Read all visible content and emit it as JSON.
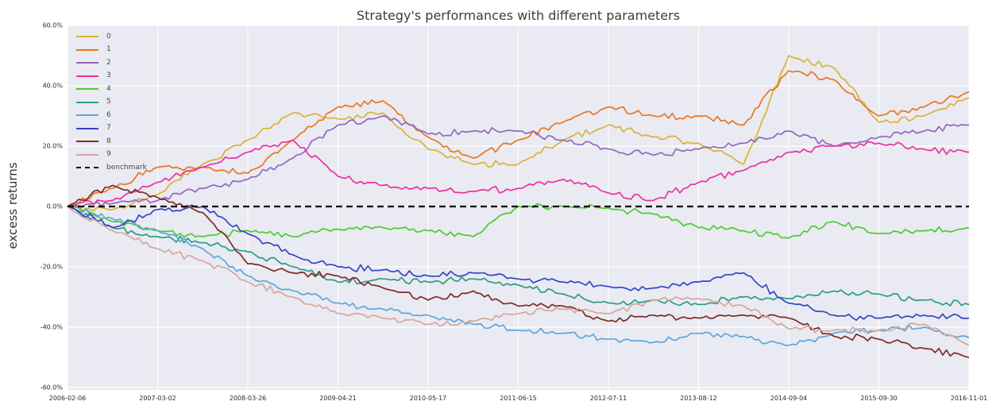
{
  "chart_data": {
    "type": "line",
    "title": "Strategy's performances with different parameters",
    "ylabel": "excess returns",
    "xlabel": "",
    "ylim": [
      -60,
      60
    ],
    "grid": true,
    "legend_position": "upper left",
    "plot_background": "#eaeaf2",
    "gridline_color": "#ffffff",
    "ytick_labels": [
      "60.0%",
      "40.0%",
      "20.0%",
      "0.0%",
      "-20.0%",
      "-40.0%",
      "-60.0%"
    ],
    "ytick_values": [
      60,
      40,
      20,
      0,
      -20,
      -40,
      -60
    ],
    "xtick_labels": [
      "2006-02-06",
      "2007-03-02",
      "2008-03-26",
      "2009-04-21",
      "2010-05-17",
      "2011-06-15",
      "2012-07-11",
      "2013-08-12",
      "2014-09-04",
      "2015-09-30",
      "2016-11-01"
    ],
    "sampling_note": "values are excess returns in percent, sampled at every half interval between the 11 x-axis tick dates (21 points per series)",
    "benchmark": {
      "label": "benchmark",
      "value": 0,
      "color": "#000000",
      "dashed": true
    },
    "series": [
      {
        "name": "0",
        "color": "#d9b333",
        "values": [
          0,
          -1,
          4,
          14,
          22,
          31,
          29,
          31,
          19,
          14,
          14,
          22,
          27,
          23,
          21,
          14,
          50,
          46,
          28,
          30,
          36
        ]
      },
      {
        "name": "1",
        "color": "#e8771f",
        "values": [
          0,
          6,
          13,
          13,
          11,
          22,
          33,
          35,
          23,
          16,
          22,
          28,
          33,
          30,
          30,
          27,
          45,
          42,
          30,
          33,
          38
        ]
      },
      {
        "name": "2",
        "color": "#9467bd",
        "values": [
          0,
          1,
          2,
          6,
          9,
          16,
          27,
          30,
          24,
          25,
          25,
          22,
          19,
          17,
          19,
          21,
          25,
          20,
          23,
          25,
          27
        ]
      },
      {
        "name": "3",
        "color": "#ea31a3",
        "values": [
          0,
          2,
          8,
          13,
          18,
          22,
          10,
          7,
          6,
          5,
          6,
          9,
          4.5,
          2,
          8,
          12,
          18,
          20,
          21,
          19,
          18
        ]
      },
      {
        "name": "4",
        "color": "#4ccb2f",
        "values": [
          0,
          -5,
          -8,
          -10,
          -8,
          -10,
          -7.5,
          -7,
          -8,
          -10,
          0,
          0,
          -0.5,
          -2.5,
          -7,
          -8,
          -10.5,
          -5,
          -9,
          -8,
          -7
        ]
      },
      {
        "name": "5",
        "color": "#2a9d83",
        "values": [
          0,
          -7,
          -10,
          -12,
          -15,
          -20,
          -25,
          -24,
          -25,
          -24,
          -26,
          -29,
          -32,
          -31,
          -32.5,
          -30,
          -30.5,
          -28,
          -29,
          -31,
          -32.5
        ]
      },
      {
        "name": "6",
        "color": "#5ca7dc",
        "values": [
          0,
          -4,
          -8,
          -14,
          -23,
          -28,
          -32,
          -34,
          -36,
          -39,
          -41,
          -42,
          -44,
          -45,
          -42,
          -43,
          -46,
          -42,
          -41,
          -40,
          -43.5
        ]
      },
      {
        "name": "7",
        "color": "#3545c6",
        "values": [
          0,
          -7,
          -1,
          0,
          -9,
          -16,
          -20,
          -21,
          -23,
          -22,
          -24,
          -25,
          -26.5,
          -27,
          -25,
          -22,
          -32,
          -36,
          -37,
          -36,
          -37
        ]
      },
      {
        "name": "8",
        "color": "#7e2b22",
        "values": [
          0,
          7,
          3,
          -2,
          -19,
          -22,
          -23,
          -27,
          -31,
          -28,
          -33,
          -33,
          -38,
          -36,
          -37,
          -36,
          -37,
          -43,
          -44,
          -47,
          -50
        ]
      },
      {
        "name": "9",
        "color": "#d7a79a",
        "values": [
          0,
          -8,
          -14,
          -18,
          -25,
          -30,
          -35.5,
          -37,
          -39,
          -38,
          -35.5,
          -34,
          -35.5,
          -31,
          -30.5,
          -33,
          -40.5,
          -41,
          -41,
          -39,
          -46
        ]
      }
    ]
  }
}
